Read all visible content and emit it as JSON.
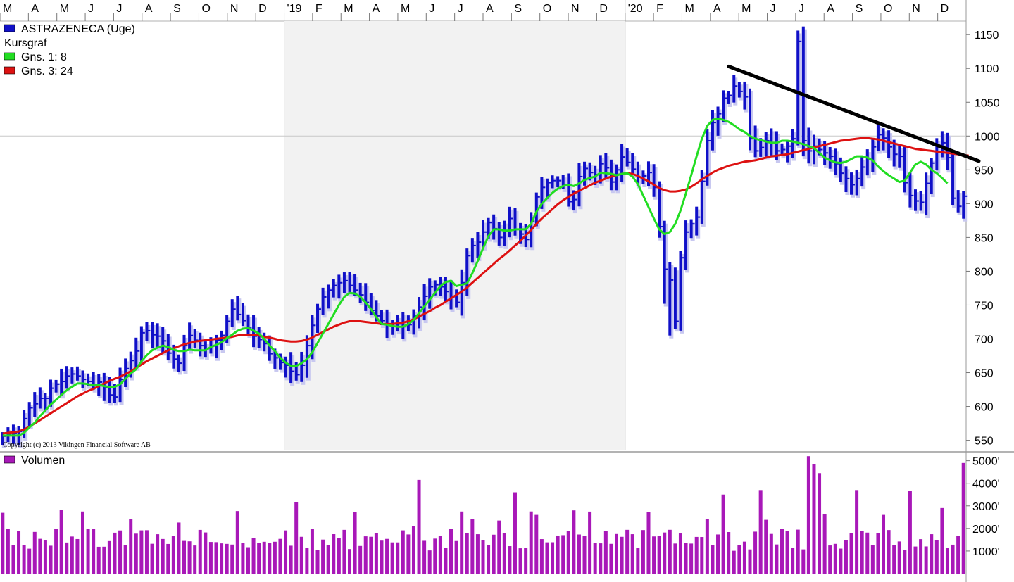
{
  "colors": {
    "price_bars": "#1010c8",
    "price_shadow": "#c8c8f0",
    "ma_short": "#22dd22",
    "ma_long": "#dd1111",
    "trendline": "#000000",
    "volume": "#a818b8",
    "panel_bg": "#f2f2f2",
    "axis_bg": "#ffffff",
    "frame": "#b0b0b0"
  },
  "legend": {
    "series_name": "ASTRAZENECA (Uge)",
    "chart_type": "Kursgraf",
    "ma_short": "Gns. 1: 8",
    "ma_long": "Gns. 3: 24"
  },
  "volume_legend": "Volumen",
  "copyright": "Copyright (c) 2013 Vikingen Financial Software AB",
  "chart_data": {
    "type": "candlestick",
    "timeframe": "weekly",
    "month_labels": [
      "M",
      "A",
      "M",
      "J",
      "J",
      "A",
      "S",
      "O",
      "N",
      "D",
      "'19",
      "F",
      "M",
      "A",
      "M",
      "J",
      "J",
      "A",
      "S",
      "O",
      "N",
      "D",
      "'20",
      "F",
      "M",
      "A",
      "M",
      "J",
      "J",
      "A",
      "S",
      "O",
      "N",
      "D"
    ],
    "year_separators": [
      "'19",
      "'20"
    ],
    "price_axis": {
      "ticks": [
        550,
        600,
        650,
        700,
        750,
        800,
        850,
        900,
        950,
        1000,
        1050,
        1100,
        1150
      ],
      "range": [
        535,
        1170
      ],
      "gridline_at": 1000
    },
    "volume_axis": {
      "ticks": [
        1000,
        2000,
        3000,
        4000,
        5000
      ],
      "tick_labels": [
        "1000'",
        "2000'",
        "3000'",
        "4000'",
        "5000'"
      ],
      "range": [
        0,
        5300
      ],
      "unit": "thousands"
    },
    "price_close_estimated": [
      556,
      558,
      560,
      563,
      582,
      598,
      604,
      612,
      612,
      627,
      633,
      637,
      645,
      648,
      645,
      640,
      637,
      632,
      636,
      628,
      617,
      614,
      640,
      656,
      668,
      682,
      709,
      712,
      706,
      704,
      697,
      679,
      670,
      664,
      690,
      705,
      698,
      690,
      686,
      689,
      698,
      705,
      726,
      744,
      736,
      727,
      716,
      704,
      699,
      693,
      678,
      672,
      665,
      661,
      652,
      647,
      661,
      690,
      720,
      744,
      762,
      772,
      779,
      783,
      786,
      779,
      772,
      765,
      754,
      742,
      734,
      727,
      721,
      722,
      722,
      718,
      721,
      734,
      747,
      763,
      777,
      780,
      777,
      770,
      761,
      754,
      783,
      823,
      838,
      843,
      858,
      872,
      863,
      850,
      860,
      878,
      862,
      855,
      847,
      874,
      910,
      924,
      931,
      934,
      934,
      928,
      903,
      906,
      940,
      952,
      946,
      943,
      959,
      953,
      932,
      950,
      969,
      961,
      951,
      939,
      941,
      946,
      924,
      866,
      803,
      787,
      726,
      820,
      858,
      870,
      880,
      933,
      993,
      1020,
      1033,
      1056,
      1060,
      1074,
      1066,
      1058,
      996,
      978,
      983,
      993,
      990,
      978,
      980,
      985,
      996,
      1140,
      993,
      978,
      985,
      980,
      975,
      970,
      959,
      945,
      937,
      928,
      937,
      954,
      966,
      984,
      1002,
      997,
      984,
      973,
      970,
      931,
      912,
      904,
      902,
      930,
      960,
      985,
      990,
      968,
      908,
      896,
      911
    ],
    "ma_short_8_estimated": [
      557,
      557,
      557,
      557,
      561,
      569,
      576,
      586,
      594,
      603,
      610,
      617,
      624,
      629,
      634,
      634,
      633,
      631,
      632,
      630,
      629,
      629,
      633,
      641,
      649,
      655,
      667,
      676,
      683,
      687,
      690,
      688,
      684,
      682,
      682,
      684,
      683,
      683,
      683,
      688,
      691,
      695,
      701,
      706,
      712,
      715,
      716,
      712,
      708,
      700,
      690,
      682,
      672,
      665,
      660,
      660,
      664,
      670,
      680,
      694,
      708,
      722,
      736,
      750,
      762,
      768,
      767,
      762,
      754,
      744,
      732,
      722,
      721,
      719,
      718,
      718,
      722,
      728,
      738,
      748,
      758,
      768,
      778,
      784,
      786,
      778,
      780,
      782,
      797,
      815,
      834,
      852,
      862,
      862,
      860,
      860,
      862,
      862,
      862,
      870,
      888,
      900,
      908,
      916,
      922,
      926,
      928,
      926,
      930,
      935,
      938,
      940,
      946,
      945,
      944,
      942,
      944,
      945,
      940,
      929,
      912,
      895,
      878,
      862,
      855,
      858,
      870,
      890,
      915,
      942,
      970,
      996,
      1015,
      1024,
      1026,
      1024,
      1021,
      1016,
      1010,
      1006,
      1000,
      996,
      994,
      992,
      990,
      990,
      993,
      993,
      992,
      990,
      988,
      985,
      982,
      975,
      968,
      964,
      961,
      960,
      962,
      966,
      970,
      970,
      968,
      964,
      955,
      948,
      942,
      937,
      932,
      934,
      946,
      958,
      962,
      958,
      950,
      945,
      938,
      930
    ],
    "ma_long_24_estimated": [
      560,
      561,
      562,
      563,
      566,
      570,
      575,
      580,
      585,
      590,
      595,
      600,
      605,
      610,
      615,
      619,
      623,
      626,
      630,
      634,
      638,
      641,
      644,
      648,
      652,
      657,
      662,
      667,
      671,
      675,
      679,
      683,
      686,
      689,
      692,
      694,
      696,
      697,
      698,
      699,
      700,
      701,
      702,
      703,
      705,
      706,
      706,
      706,
      705,
      703,
      702,
      700,
      698,
      697,
      696,
      696,
      697,
      699,
      702,
      706,
      710,
      714,
      718,
      721,
      724,
      726,
      726,
      726,
      725,
      724,
      723,
      722,
      722,
      722,
      723,
      724,
      726,
      729,
      733,
      737,
      741,
      746,
      750,
      755,
      760,
      765,
      770,
      776,
      783,
      790,
      797,
      804,
      811,
      818,
      824,
      831,
      838,
      845,
      853,
      861,
      870,
      878,
      885,
      892,
      899,
      905,
      910,
      915,
      919,
      923,
      927,
      931,
      934,
      937,
      940,
      942,
      944,
      945,
      944,
      941,
      937,
      933,
      928,
      923,
      920,
      918,
      918,
      919,
      921,
      925,
      930,
      936,
      941,
      946,
      950,
      953,
      956,
      958,
      960,
      962,
      963,
      964,
      966,
      968,
      970,
      971,
      972,
      973,
      975,
      977,
      979,
      981,
      983,
      985,
      987,
      989,
      991,
      993,
      994,
      995,
      996,
      997,
      997,
      996,
      995,
      993,
      991,
      989,
      987,
      985,
      983,
      981,
      980,
      979,
      978,
      977,
      976,
      975,
      974,
      973,
      972,
      971
    ]
  }
}
